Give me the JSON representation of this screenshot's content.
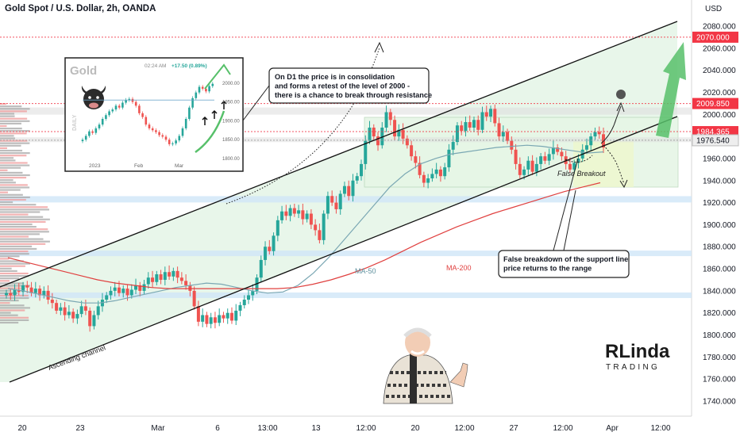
{
  "header": {
    "title": "Gold Spot / U.S. Dollar, 2h, OANDA"
  },
  "colors": {
    "up": "#26a69a",
    "down": "#ef5350",
    "ma50": "#7aa7b3",
    "ma200": "#e0403f",
    "channel": "#111111",
    "channel_fill": "#dff2e3",
    "range_fill": "#e6f6e6",
    "tag_red": "#f23645",
    "tag_gray": "#eeeeee",
    "band_blue": "#cfe6f7",
    "band_gray": "#dcdcdc",
    "arrow_green": "#57c06a"
  },
  "chart_data": {
    "type": "candlestick",
    "title": "Gold Spot / U.S. Dollar, 2h, OANDA",
    "ylabel": "USD",
    "ylim": [
      1725,
      2100
    ],
    "y_ticks": [
      2080,
      2060,
      2040,
      2020,
      2000,
      1980,
      1960,
      1940,
      1920,
      1900,
      1880,
      1860,
      1840,
      1820,
      1800,
      1780,
      1760,
      1740
    ],
    "x_ticks": [
      "20",
      "23",
      "Mar",
      "6",
      "13:00",
      "13",
      "12:00",
      "20",
      "12:00",
      "27",
      "12:00",
      "Apr",
      "12:00"
    ],
    "price_tags": [
      {
        "value": 2070.0,
        "label": "2070.000",
        "style": "red"
      },
      {
        "value": 2009.85,
        "label": "2009.850",
        "style": "red"
      },
      {
        "value": 1984.365,
        "label": "1984.365",
        "style": "red"
      },
      {
        "value": 1976.54,
        "label": "1976.540",
        "style": "gray"
      }
    ],
    "price_path": [
      1838,
      1836,
      1841,
      1839,
      1845,
      1843,
      1838,
      1842,
      1836,
      1840,
      1832,
      1829,
      1822,
      1825,
      1818,
      1821,
      1815,
      1819,
      1826,
      1822,
      1808,
      1818,
      1826,
      1832,
      1836,
      1840,
      1843,
      1838,
      1842,
      1836,
      1841,
      1845,
      1840,
      1846,
      1852,
      1848,
      1855,
      1850,
      1857,
      1853,
      1858,
      1852,
      1849,
      1845,
      1840,
      1826,
      1812,
      1818,
      1810,
      1816,
      1811,
      1818,
      1815,
      1820,
      1813,
      1822,
      1827,
      1832,
      1836,
      1840,
      1852,
      1868,
      1880,
      1876,
      1890,
      1904,
      1912,
      1908,
      1915,
      1910,
      1913,
      1905,
      1910,
      1900,
      1895,
      1886,
      1910,
      1926,
      1920,
      1914,
      1928,
      1935,
      1926,
      1940,
      1944,
      1955,
      1976,
      1988,
      1980,
      1972,
      1988,
      2002,
      1995,
      1980,
      1986,
      1978,
      1972,
      1962,
      1956,
      1945,
      1938,
      1942,
      1946,
      1950,
      1944,
      1952,
      1968,
      1975,
      1990,
      1985,
      1993,
      1988,
      1995,
      1986,
      2002,
      1998,
      2005,
      1992,
      1980,
      1984,
      1976,
      1968,
      1955,
      1945,
      1950,
      1958,
      1948,
      1955,
      1962,
      1958,
      1964,
      1970,
      1966,
      1962,
      1955,
      1950,
      1956,
      1960,
      1968,
      1972,
      1980,
      1984,
      1982,
      1970
    ],
    "ma50": [
      1842,
      1840,
      1837,
      1834,
      1831,
      1829,
      1829,
      1831,
      1834,
      1837,
      1840,
      1843,
      1845,
      1847,
      1846,
      1843,
      1840,
      1838,
      1839,
      1845,
      1856,
      1870,
      1886,
      1902,
      1918,
      1934,
      1946,
      1955,
      1960,
      1964,
      1966,
      1968,
      1970,
      1971,
      1972,
      1971,
      1969,
      1967,
      1965,
      1966
    ],
    "ma200": [
      1870,
      1866,
      1862,
      1858,
      1854,
      1850,
      1847,
      1845,
      1843,
      1842,
      1842,
      1842,
      1842,
      1842,
      1842,
      1842,
      1843,
      1846,
      1850,
      1855,
      1861,
      1868,
      1876,
      1884,
      1891,
      1898,
      1904,
      1910,
      1915,
      1920,
      1925,
      1930,
      1934,
      1938
    ],
    "annotations": {
      "consolidation_note": "On D1 the price is in consolidation\nand forms a retest of the level of 2000 -\nthere is a chance to break through resistance",
      "breakdown_note": "False breakdown of the support line\nprice returns to the range",
      "false_breakout": "False Breakout",
      "ascending_channel": "Ascending channel",
      "ma50_label": "MA-50",
      "ma200_label": "MA-200"
    },
    "inset": {
      "symbol": "Gold",
      "time": "02:24 AM",
      "change": "+17.50 (0.89%)",
      "side_label": "DAILY",
      "x_labels": [
        "2023",
        "Feb",
        "Mar"
      ],
      "y_labels": [
        "2000.00",
        "1950.00",
        "1900.00",
        "1850.00",
        "1800.00"
      ]
    },
    "branding": {
      "logo_main": "RLinda",
      "logo_sub": "TRADING"
    }
  }
}
